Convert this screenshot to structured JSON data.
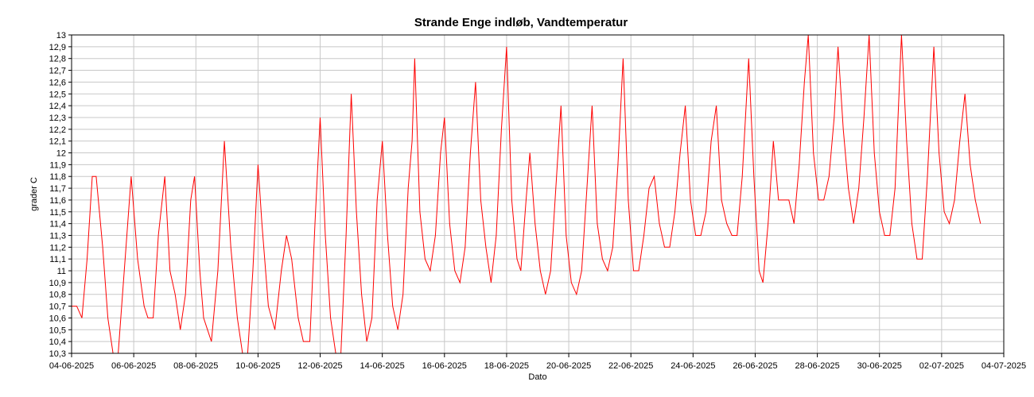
{
  "chart_data": {
    "type": "line",
    "title": "Strande Enge indløb, Vandtemperatur",
    "xlabel": "Dato",
    "ylabel": "grader C",
    "x_range": [
      "2025-06-04",
      "2025-07-04"
    ],
    "ylim": [
      10.3,
      13
    ],
    "x_tick_labels": [
      "04-06-2025",
      "06-06-2025",
      "08-06-2025",
      "10-06-2025",
      "12-06-2025",
      "14-06-2025",
      "16-06-2025",
      "18-06-2025",
      "20-06-2025",
      "22-06-2025",
      "24-06-2025",
      "26-06-2025",
      "28-06-2025",
      "30-06-2025",
      "02-07-2025",
      "04-07-2025"
    ],
    "y_tick_labels": [
      "10,3",
      "10,4",
      "10,5",
      "10,6",
      "10,7",
      "10,8",
      "10,9",
      "11",
      "11,1",
      "11,2",
      "11,3",
      "11,4",
      "11,5",
      "11,6",
      "11,7",
      "11,8",
      "11,9",
      "12",
      "12,1",
      "12,2",
      "12,3",
      "12,4",
      "12,5",
      "12,6",
      "12,7",
      "12,8",
      "12,9",
      "13"
    ],
    "grid": true,
    "series": [
      {
        "color": "#ff0000",
        "points": [
          [
            "2025-06-04 00:00",
            10.7
          ],
          [
            "2025-06-04 04:00",
            10.7
          ],
          [
            "2025-06-04 08:00",
            10.6
          ],
          [
            "2025-06-04 12:00",
            11.1
          ],
          [
            "2025-06-04 16:00",
            11.8
          ],
          [
            "2025-06-04 19:00",
            11.8
          ],
          [
            "2025-06-05 00:00",
            11.2
          ],
          [
            "2025-06-05 04:00",
            10.6
          ],
          [
            "2025-06-05 08:00",
            10.3
          ],
          [
            "2025-06-05 12:00",
            10.3
          ],
          [
            "2025-06-05 18:00",
            11.2
          ],
          [
            "2025-06-05 22:00",
            11.8
          ],
          [
            "2025-06-06 03:00",
            11.1
          ],
          [
            "2025-06-06 08:00",
            10.7
          ],
          [
            "2025-06-06 11:00",
            10.6
          ],
          [
            "2025-06-06 15:00",
            10.6
          ],
          [
            "2025-06-06 19:00",
            11.3
          ],
          [
            "2025-06-07 00:00",
            11.8
          ],
          [
            "2025-06-07 04:00",
            11.0
          ],
          [
            "2025-06-07 08:00",
            10.8
          ],
          [
            "2025-06-07 12:00",
            10.5
          ],
          [
            "2025-06-07 16:00",
            10.8
          ],
          [
            "2025-06-07 20:00",
            11.6
          ],
          [
            "2025-06-07 23:00",
            11.8
          ],
          [
            "2025-06-08 03:00",
            11.0
          ],
          [
            "2025-06-08 06:00",
            10.6
          ],
          [
            "2025-06-08 09:00",
            10.5
          ],
          [
            "2025-06-08 12:00",
            10.4
          ],
          [
            "2025-06-08 17:00",
            11.0
          ],
          [
            "2025-06-08 22:00",
            12.1
          ],
          [
            "2025-06-09 03:00",
            11.2
          ],
          [
            "2025-06-09 08:00",
            10.6
          ],
          [
            "2025-06-09 12:00",
            10.3
          ],
          [
            "2025-06-09 16:00",
            10.3
          ],
          [
            "2025-06-09 20:00",
            11.0
          ],
          [
            "2025-06-10 00:00",
            11.9
          ],
          [
            "2025-06-10 03:00",
            11.4
          ],
          [
            "2025-06-10 08:00",
            10.7
          ],
          [
            "2025-06-10 13:00",
            10.5
          ],
          [
            "2025-06-10 18:00",
            11.0
          ],
          [
            "2025-06-10 22:00",
            11.3
          ],
          [
            "2025-06-11 02:00",
            11.1
          ],
          [
            "2025-06-11 07:00",
            10.6
          ],
          [
            "2025-06-11 11:00",
            10.4
          ],
          [
            "2025-06-11 16:00",
            10.4
          ],
          [
            "2025-06-11 20:00",
            11.4
          ],
          [
            "2025-06-12 00:00",
            12.3
          ],
          [
            "2025-06-12 04:00",
            11.3
          ],
          [
            "2025-06-12 08:00",
            10.6
          ],
          [
            "2025-06-12 12:00",
            10.3
          ],
          [
            "2025-06-12 16:00",
            10.3
          ],
          [
            "2025-06-12 20:00",
            11.3
          ],
          [
            "2025-06-13 00:00",
            12.5
          ],
          [
            "2025-06-13 04:00",
            11.5
          ],
          [
            "2025-06-13 08:00",
            10.8
          ],
          [
            "2025-06-13 12:00",
            10.4
          ],
          [
            "2025-06-13 16:00",
            10.6
          ],
          [
            "2025-06-13 20:00",
            11.6
          ],
          [
            "2025-06-14 00:00",
            12.1
          ],
          [
            "2025-06-14 04:00",
            11.3
          ],
          [
            "2025-06-14 08:00",
            10.7
          ],
          [
            "2025-06-14 12:00",
            10.5
          ],
          [
            "2025-06-14 16:00",
            10.8
          ],
          [
            "2025-06-14 20:00",
            11.7
          ],
          [
            "2025-06-14 23:00",
            12.1
          ],
          [
            "2025-06-15 01:00",
            12.8
          ],
          [
            "2025-06-15 05:00",
            11.5
          ],
          [
            "2025-06-15 09:00",
            11.1
          ],
          [
            "2025-06-15 13:00",
            11.0
          ],
          [
            "2025-06-15 17:00",
            11.3
          ],
          [
            "2025-06-15 21:00",
            12.0
          ],
          [
            "2025-06-16 00:00",
            12.3
          ],
          [
            "2025-06-16 04:00",
            11.4
          ],
          [
            "2025-06-16 08:00",
            11.0
          ],
          [
            "2025-06-16 12:00",
            10.9
          ],
          [
            "2025-06-16 16:00",
            11.2
          ],
          [
            "2025-06-16 20:00",
            12.0
          ],
          [
            "2025-06-17 00:00",
            12.6
          ],
          [
            "2025-06-17 04:00",
            11.6
          ],
          [
            "2025-06-17 08:00",
            11.2
          ],
          [
            "2025-06-17 12:00",
            10.9
          ],
          [
            "2025-06-17 16:00",
            11.3
          ],
          [
            "2025-06-17 20:00",
            12.2
          ],
          [
            "2025-06-18 00:00",
            12.9
          ],
          [
            "2025-06-18 04:00",
            11.6
          ],
          [
            "2025-06-18 08:00",
            11.1
          ],
          [
            "2025-06-18 11:00",
            11.0
          ],
          [
            "2025-06-18 15:00",
            11.6
          ],
          [
            "2025-06-18 18:00",
            12.0
          ],
          [
            "2025-06-18 22:00",
            11.4
          ],
          [
            "2025-06-19 02:00",
            11.0
          ],
          [
            "2025-06-19 06:00",
            10.8
          ],
          [
            "2025-06-19 10:00",
            11.0
          ],
          [
            "2025-06-19 14:00",
            11.7
          ],
          [
            "2025-06-19 18:00",
            12.4
          ],
          [
            "2025-06-19 22:00",
            11.3
          ],
          [
            "2025-06-20 02:00",
            10.9
          ],
          [
            "2025-06-20 06:00",
            10.8
          ],
          [
            "2025-06-20 10:00",
            11.0
          ],
          [
            "2025-06-20 14:00",
            11.7
          ],
          [
            "2025-06-20 18:00",
            12.4
          ],
          [
            "2025-06-20 22:00",
            11.4
          ],
          [
            "2025-06-21 02:00",
            11.1
          ],
          [
            "2025-06-21 06:00",
            11.0
          ],
          [
            "2025-06-21 10:00",
            11.2
          ],
          [
            "2025-06-21 14:00",
            11.9
          ],
          [
            "2025-06-21 18:00",
            12.8
          ],
          [
            "2025-06-21 22:00",
            11.6
          ],
          [
            "2025-06-22 02:00",
            11.0
          ],
          [
            "2025-06-22 06:00",
            11.0
          ],
          [
            "2025-06-22 10:00",
            11.3
          ],
          [
            "2025-06-22 14:00",
            11.7
          ],
          [
            "2025-06-22 18:00",
            11.8
          ],
          [
            "2025-06-22 22:00",
            11.4
          ],
          [
            "2025-06-23 02:00",
            11.2
          ],
          [
            "2025-06-23 06:00",
            11.2
          ],
          [
            "2025-06-23 10:00",
            11.5
          ],
          [
            "2025-06-23 14:00",
            12.0
          ],
          [
            "2025-06-23 18:00",
            12.4
          ],
          [
            "2025-06-23 22:00",
            11.6
          ],
          [
            "2025-06-24 02:00",
            11.3
          ],
          [
            "2025-06-24 06:00",
            11.3
          ],
          [
            "2025-06-24 10:00",
            11.5
          ],
          [
            "2025-06-24 14:00",
            12.1
          ],
          [
            "2025-06-24 18:00",
            12.4
          ],
          [
            "2025-06-24 22:00",
            11.6
          ],
          [
            "2025-06-25 02:00",
            11.4
          ],
          [
            "2025-06-25 06:00",
            11.3
          ],
          [
            "2025-06-25 10:00",
            11.3
          ],
          [
            "2025-06-25 14:00",
            11.8
          ],
          [
            "2025-06-25 19:00",
            12.8
          ],
          [
            "2025-06-25 23:00",
            11.8
          ],
          [
            "2025-06-26 03:00",
            11.0
          ],
          [
            "2025-06-26 06:00",
            10.9
          ],
          [
            "2025-06-26 10:00",
            11.4
          ],
          [
            "2025-06-26 14:00",
            12.1
          ],
          [
            "2025-06-26 18:00",
            11.6
          ],
          [
            "2025-06-26 22:00",
            11.6
          ],
          [
            "2025-06-27 02:00",
            11.6
          ],
          [
            "2025-06-27 06:00",
            11.4
          ],
          [
            "2025-06-27 10:00",
            11.9
          ],
          [
            "2025-06-27 14:00",
            12.6
          ],
          [
            "2025-06-27 17:00",
            13.0
          ],
          [
            "2025-06-27 21:00",
            12.0
          ],
          [
            "2025-06-28 01:00",
            11.6
          ],
          [
            "2025-06-28 05:00",
            11.6
          ],
          [
            "2025-06-28 09:00",
            11.8
          ],
          [
            "2025-06-28 13:00",
            12.3
          ],
          [
            "2025-06-28 16:00",
            12.9
          ],
          [
            "2025-06-28 20:00",
            12.2
          ],
          [
            "2025-06-29 00:00",
            11.7
          ],
          [
            "2025-06-29 04:00",
            11.4
          ],
          [
            "2025-06-29 08:00",
            11.7
          ],
          [
            "2025-06-29 12:00",
            12.3
          ],
          [
            "2025-06-29 16:00",
            13.0
          ],
          [
            "2025-06-29 20:00",
            12.0
          ],
          [
            "2025-06-30 00:00",
            11.5
          ],
          [
            "2025-06-30 04:00",
            11.3
          ],
          [
            "2025-06-30 08:00",
            11.3
          ],
          [
            "2025-06-30 12:00",
            11.7
          ],
          [
            "2025-06-30 17:00",
            13.0
          ],
          [
            "2025-06-30 21:00",
            12.1
          ],
          [
            "2025-07-01 01:00",
            11.4
          ],
          [
            "2025-07-01 05:00",
            11.1
          ],
          [
            "2025-07-01 09:00",
            11.1
          ],
          [
            "2025-07-01 13:00",
            11.8
          ],
          [
            "2025-07-01 18:00",
            12.9
          ],
          [
            "2025-07-01 22:00",
            12.0
          ],
          [
            "2025-07-02 02:00",
            11.5
          ],
          [
            "2025-07-02 06:00",
            11.4
          ],
          [
            "2025-07-02 10:00",
            11.6
          ],
          [
            "2025-07-02 14:00",
            12.1
          ],
          [
            "2025-07-02 18:00",
            12.5
          ],
          [
            "2025-07-02 22:00",
            11.9
          ],
          [
            "2025-07-03 02:00",
            11.6
          ],
          [
            "2025-07-03 06:00",
            11.4
          ]
        ]
      }
    ]
  }
}
